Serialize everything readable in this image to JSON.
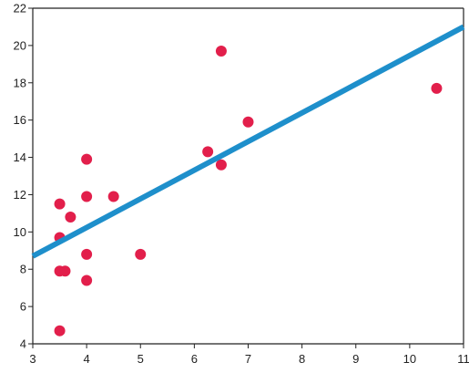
{
  "chart_data": {
    "type": "scatter",
    "title": "",
    "xlabel": "",
    "ylabel": "",
    "xlim": [
      3,
      11
    ],
    "ylim": [
      4,
      22
    ],
    "x_ticks": [
      3,
      4,
      5,
      6,
      7,
      8,
      9,
      10,
      11
    ],
    "y_ticks": [
      4,
      6,
      8,
      10,
      12,
      14,
      16,
      18,
      20,
      22
    ],
    "x_tick_labels": [
      "3",
      "4",
      "5",
      "6",
      "7",
      "8",
      "9",
      "10",
      "11"
    ],
    "y_tick_labels": [
      "4",
      "6",
      "8",
      "10",
      "12",
      "14",
      "16",
      "18",
      "20",
      "22"
    ],
    "grid": false,
    "legend": "none",
    "points": [
      {
        "x": 3.5,
        "y": 4.7
      },
      {
        "x": 3.5,
        "y": 7.9
      },
      {
        "x": 3.6,
        "y": 7.9
      },
      {
        "x": 3.5,
        "y": 9.7
      },
      {
        "x": 3.5,
        "y": 11.5
      },
      {
        "x": 3.7,
        "y": 10.8
      },
      {
        "x": 4.0,
        "y": 7.4
      },
      {
        "x": 4.0,
        "y": 8.8
      },
      {
        "x": 4.0,
        "y": 11.9
      },
      {
        "x": 4.0,
        "y": 13.9
      },
      {
        "x": 4.5,
        "y": 11.9
      },
      {
        "x": 5.0,
        "y": 8.8
      },
      {
        "x": 6.25,
        "y": 14.3
      },
      {
        "x": 6.5,
        "y": 13.6
      },
      {
        "x": 6.5,
        "y": 19.7
      },
      {
        "x": 7.0,
        "y": 15.9
      },
      {
        "x": 10.5,
        "y": 17.7
      }
    ],
    "trendline": {
      "x": [
        3,
        11
      ],
      "y": [
        8.7,
        21.0
      ]
    },
    "colors": {
      "points": "#e21f4b",
      "trendline": "#1e8fcb",
      "axis": "#222222"
    }
  }
}
